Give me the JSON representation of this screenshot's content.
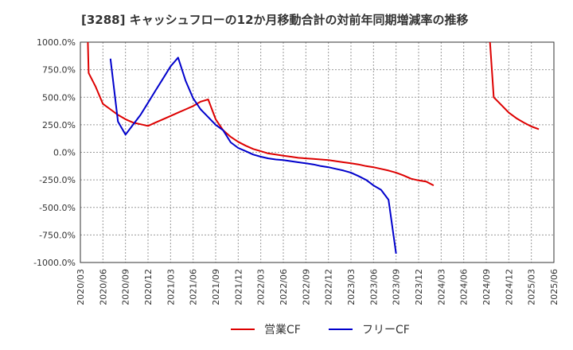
{
  "chart_data": {
    "type": "line",
    "title": "[3288]  キャッシュフローの12か月移動合計の対前年同期増減率の推移",
    "xlabel": "",
    "ylabel": "",
    "ylim": [
      -1000,
      1000
    ],
    "y_ticks": [
      {
        "value": 1000,
        "label": "1000.0%"
      },
      {
        "value": 750,
        "label": "750.0%"
      },
      {
        "value": 500,
        "label": "500.0%"
      },
      {
        "value": 250,
        "label": "250.0%"
      },
      {
        "value": 0,
        "label": "0.0%"
      },
      {
        "value": -250,
        "label": "-250.0%"
      },
      {
        "value": -500,
        "label": "-500.0%"
      },
      {
        "value": -750,
        "label": "-750.0%"
      },
      {
        "value": -1000,
        "label": "-1000.0%"
      }
    ],
    "x_ticks": [
      "2020/03",
      "2020/06",
      "2020/09",
      "2020/12",
      "2021/03",
      "2021/06",
      "2021/09",
      "2021/12",
      "2022/03",
      "2022/06",
      "2022/09",
      "2022/12",
      "2023/03",
      "2023/06",
      "2023/09",
      "2023/12",
      "2024/03",
      "2024/06",
      "2024/09",
      "2024/12",
      "2025/03",
      "2025/06"
    ],
    "x_range": [
      0,
      63
    ],
    "series": [
      {
        "name": "営業CF",
        "color": "#dd0000",
        "segments": [
          [
            [
              1,
              1000
            ],
            [
              1.1,
              720
            ],
            [
              2,
              600
            ],
            [
              3,
              440
            ],
            [
              4,
              390
            ],
            [
              5,
              340
            ],
            [
              6,
              300
            ],
            [
              7,
              270
            ],
            [
              8,
              255
            ],
            [
              9,
              240
            ],
            [
              10,
              270
            ],
            [
              11,
              300
            ],
            [
              12,
              330
            ],
            [
              13,
              360
            ],
            [
              14,
              390
            ],
            [
              15,
              420
            ],
            [
              16,
              460
            ],
            [
              17,
              480
            ],
            [
              18,
              300
            ],
            [
              19,
              200
            ],
            [
              20,
              140
            ],
            [
              21,
              95
            ],
            [
              22,
              60
            ],
            [
              23,
              30
            ],
            [
              24,
              10
            ],
            [
              25,
              -10
            ],
            [
              26,
              -20
            ],
            [
              27,
              -30
            ],
            [
              28,
              -40
            ],
            [
              29,
              -50
            ],
            [
              30,
              -55
            ],
            [
              31,
              -60
            ],
            [
              32,
              -65
            ],
            [
              33,
              -70
            ],
            [
              34,
              -80
            ],
            [
              35,
              -90
            ],
            [
              36,
              -100
            ],
            [
              37,
              -110
            ],
            [
              38,
              -125
            ],
            [
              39,
              -135
            ],
            [
              40,
              -150
            ],
            [
              41,
              -165
            ],
            [
              42,
              -185
            ],
            [
              43,
              -210
            ],
            [
              44,
              -240
            ],
            [
              45,
              -255
            ],
            [
              46,
              -265
            ],
            [
              47,
              -300
            ]
          ],
          [
            [
              54.5,
              1000
            ],
            [
              55,
              500
            ],
            [
              56,
              430
            ],
            [
              57,
              360
            ],
            [
              58,
              310
            ],
            [
              59,
              270
            ],
            [
              60,
              235
            ],
            [
              61,
              210
            ]
          ]
        ]
      },
      {
        "name": "フリーCF",
        "color": "#0000cc",
        "segments": [
          [
            [
              4,
              850
            ],
            [
              5,
              280
            ],
            [
              6,
              160
            ],
            [
              7,
              250
            ],
            [
              8,
              340
            ],
            [
              9,
              450
            ],
            [
              10,
              560
            ],
            [
              11,
              670
            ],
            [
              12,
              780
            ],
            [
              13,
              860
            ],
            [
              14,
              650
            ],
            [
              15,
              490
            ],
            [
              16,
              390
            ],
            [
              17,
              320
            ],
            [
              18,
              250
            ],
            [
              19,
              200
            ],
            [
              20,
              90
            ],
            [
              21,
              40
            ],
            [
              22,
              10
            ],
            [
              23,
              -20
            ],
            [
              24,
              -40
            ],
            [
              25,
              -55
            ],
            [
              26,
              -65
            ],
            [
              27,
              -70
            ],
            [
              28,
              -80
            ],
            [
              29,
              -90
            ],
            [
              30,
              -100
            ],
            [
              31,
              -110
            ],
            [
              32,
              -125
            ],
            [
              33,
              -135
            ],
            [
              34,
              -150
            ],
            [
              35,
              -165
            ],
            [
              36,
              -185
            ],
            [
              37,
              -215
            ],
            [
              38,
              -250
            ],
            [
              39,
              -300
            ],
            [
              40,
              -340
            ],
            [
              41,
              -430
            ],
            [
              42,
              -920
            ]
          ]
        ]
      }
    ],
    "legend": [
      "営業CF",
      "フリーCF"
    ],
    "grid": true,
    "legend_position": "bottom-center"
  }
}
